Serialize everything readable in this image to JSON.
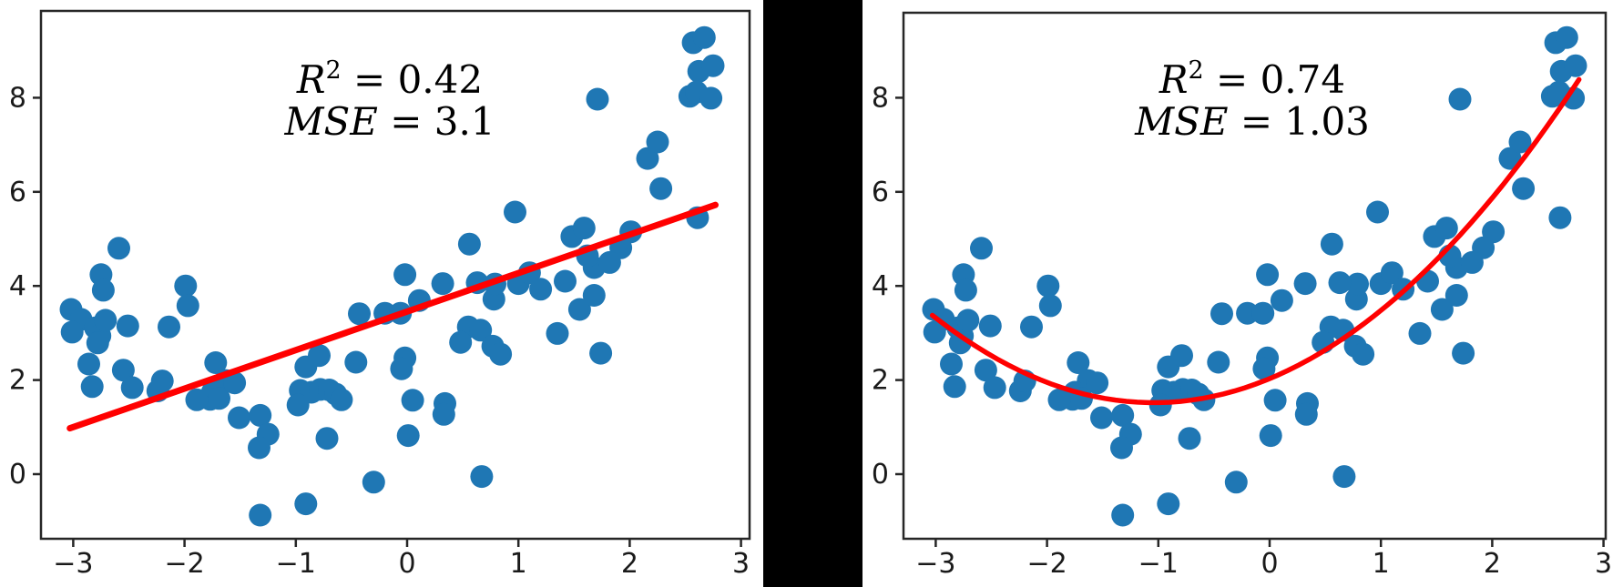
{
  "figure": {
    "background_color": "#ffffff",
    "divider_color": "#000000",
    "spine_color": "#262626",
    "tick_label_color": "#1a1a1a"
  },
  "chart_data": {
    "type": "scatter",
    "layout": "two side-by-side subplots showing the same scatter data, separated by a black vertical band; left has a linear fit, right has a quadratic fit",
    "grid": "off",
    "legend": "none",
    "marker_color": "#1f77b4",
    "fit_color": "#ff0000",
    "x_ticks": [
      -3,
      -2,
      -1,
      0,
      1,
      2,
      3
    ],
    "y_ticks": [
      0,
      2,
      4,
      6,
      8
    ],
    "xlim": [
      -3.3,
      3.07
    ],
    "ylim": [
      -1.37,
      9.85
    ],
    "points": [
      [
        -3.02,
        3.5
      ],
      [
        -2.93,
        3.29
      ],
      [
        -3.01,
        3.02
      ],
      [
        -2.8,
        3.11
      ],
      [
        -2.76,
        2.94
      ],
      [
        -2.78,
        2.79
      ],
      [
        -2.71,
        3.27
      ],
      [
        -2.51,
        3.15
      ],
      [
        -2.59,
        4.8
      ],
      [
        -2.75,
        4.24
      ],
      [
        -2.73,
        3.91
      ],
      [
        -2.86,
        2.34
      ],
      [
        -2.83,
        1.86
      ],
      [
        -2.55,
        2.21
      ],
      [
        -2.47,
        1.84
      ],
      [
        -2.24,
        1.77
      ],
      [
        -2.2,
        1.98
      ],
      [
        -2.14,
        3.13
      ],
      [
        -1.99,
        4.0
      ],
      [
        -1.97,
        3.58
      ],
      [
        -1.72,
        2.37
      ],
      [
        -1.63,
        1.99
      ],
      [
        -1.55,
        1.94
      ],
      [
        -1.75,
        1.74
      ],
      [
        -1.77,
        1.59
      ],
      [
        -1.89,
        1.58
      ],
      [
        -1.69,
        1.61
      ],
      [
        -1.51,
        1.2
      ],
      [
        -1.32,
        1.25
      ],
      [
        -1.25,
        0.85
      ],
      [
        -1.33,
        0.56
      ],
      [
        -1.32,
        -0.87
      ],
      [
        -0.91,
        -0.63
      ],
      [
        -0.96,
        1.78
      ],
      [
        -0.86,
        1.74
      ],
      [
        -0.78,
        1.8
      ],
      [
        -0.7,
        1.79
      ],
      [
        -0.64,
        1.7
      ],
      [
        -0.59,
        1.58
      ],
      [
        -0.98,
        1.47
      ],
      [
        -0.91,
        2.28
      ],
      [
        -0.79,
        2.52
      ],
      [
        -0.46,
        2.38
      ],
      [
        -0.72,
        0.76
      ],
      [
        -0.3,
        -0.17
      ],
      [
        -0.43,
        3.41
      ],
      [
        -0.2,
        3.42
      ],
      [
        -0.06,
        3.42
      ],
      [
        0.11,
        3.69
      ],
      [
        -0.02,
        4.24
      ],
      [
        -0.02,
        2.47
      ],
      [
        -0.05,
        2.24
      ],
      [
        0.05,
        1.57
      ],
      [
        0.34,
        1.5
      ],
      [
        0.33,
        1.27
      ],
      [
        0.01,
        0.82
      ],
      [
        0.32,
        4.05
      ],
      [
        0.67,
        -0.05
      ],
      [
        0.97,
        5.57
      ],
      [
        0.56,
        4.89
      ],
      [
        0.55,
        3.13
      ],
      [
        0.66,
        3.06
      ],
      [
        0.48,
        2.8
      ],
      [
        0.77,
        2.72
      ],
      [
        0.84,
        2.55
      ],
      [
        0.78,
        3.72
      ],
      [
        0.79,
        4.04
      ],
      [
        0.63,
        4.07
      ],
      [
        1.0,
        4.05
      ],
      [
        1.1,
        4.28
      ],
      [
        1.2,
        3.93
      ],
      [
        1.42,
        4.1
      ],
      [
        1.35,
        2.99
      ],
      [
        1.55,
        3.5
      ],
      [
        1.68,
        3.8
      ],
      [
        1.68,
        4.39
      ],
      [
        1.74,
        2.57
      ],
      [
        1.48,
        5.05
      ],
      [
        1.59,
        5.23
      ],
      [
        2.01,
        5.15
      ],
      [
        1.62,
        4.64
      ],
      [
        1.92,
        4.81
      ],
      [
        1.82,
        4.5
      ],
      [
        1.71,
        7.97
      ],
      [
        2.16,
        6.71
      ],
      [
        2.25,
        7.06
      ],
      [
        2.28,
        6.07
      ],
      [
        2.61,
        5.45
      ],
      [
        2.57,
        9.17
      ],
      [
        2.67,
        9.28
      ],
      [
        2.62,
        8.56
      ],
      [
        2.75,
        8.68
      ],
      [
        2.54,
        8.03
      ],
      [
        2.6,
        8.12
      ],
      [
        2.73,
        7.99
      ]
    ],
    "subplots": [
      {
        "name": "linear-fit-plot",
        "fit": {
          "kind": "linear",
          "slope": 0.8185,
          "intercept": 3.455,
          "x_range": [
            -3.03,
            2.77
          ]
        },
        "annotation": {
          "line1_display": "R² = 0.42",
          "line2_display": "MSE = 3.1",
          "r_symbol": "R",
          "r_exponent": "2",
          "r_equals_value": " = 0.42",
          "mse_symbol": "MSE",
          "mse_equals_value": " = 3.1",
          "r2_value": 0.42,
          "mse_value": 3.1
        }
      },
      {
        "name": "quadratic-fit-plot",
        "fit": {
          "kind": "quadratic",
          "a": 0.47,
          "b": 0.98,
          "c": 2.03,
          "x_range": [
            -3.03,
            2.78
          ]
        },
        "annotation": {
          "line1_display": "R² = 0.74",
          "line2_display": "MSE = 1.03",
          "r_symbol": "R",
          "r_exponent": "2",
          "r_equals_value": " = 0.74",
          "mse_symbol": "MSE",
          "mse_equals_value": " = 1.03",
          "r2_value": 0.74,
          "mse_value": 1.03
        }
      }
    ]
  }
}
